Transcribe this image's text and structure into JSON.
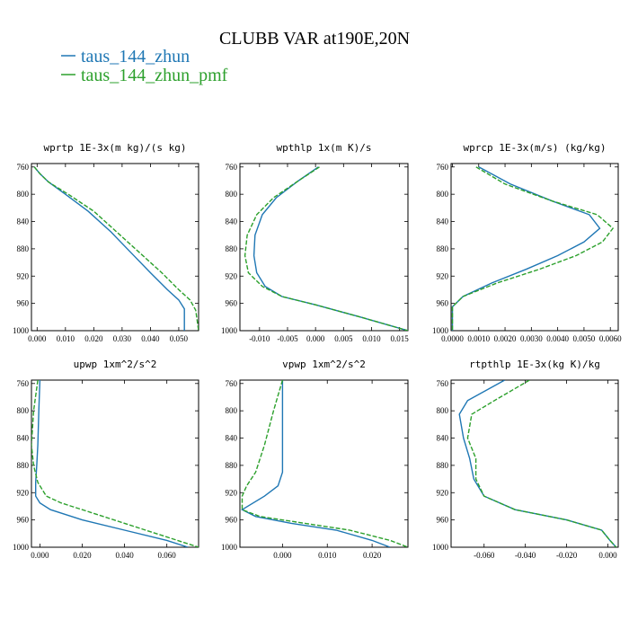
{
  "figure": {
    "title": "CLUBB VAR at190E,20N",
    "legend": [
      {
        "label": "taus_144_zhun",
        "color": "#1f77b4",
        "dash": "solid"
      },
      {
        "label": "taus_144_zhun_pmf",
        "color": "#2ca02c",
        "dash": "dashed"
      }
    ]
  },
  "chart_data": [
    {
      "type": "line",
      "title": "wprtp  1E-3x(m kg)/(s kg)",
      "xlim": [
        -0.002,
        0.057
      ],
      "ylim": [
        1000,
        755
      ],
      "xticks": [
        0.0,
        0.01,
        0.02,
        0.03,
        0.04,
        0.05
      ],
      "xtick_labels": [
        "0.000",
        "0.010",
        "0.020",
        "0.030",
        "0.040",
        "0.050"
      ],
      "yticks": [
        760,
        800,
        840,
        880,
        920,
        960,
        1000
      ],
      "ytick_labels": [
        "760",
        "800",
        "840",
        "880",
        "920",
        "960",
        "1000"
      ],
      "series": [
        {
          "name": "taus_144_zhun",
          "x": [
            -0.001,
            0.001,
            0.004,
            0.01,
            0.018,
            0.026,
            0.033,
            0.04,
            0.046,
            0.05,
            0.052,
            0.052
          ],
          "y": [
            760,
            770,
            782,
            800,
            825,
            855,
            885,
            915,
            940,
            955,
            968,
            1000
          ]
        },
        {
          "name": "taus_144_zhun_pmf",
          "x": [
            -0.001,
            0.001,
            0.004,
            0.011,
            0.02,
            0.028,
            0.036,
            0.044,
            0.05,
            0.054,
            0.056,
            0.057
          ],
          "y": [
            760,
            770,
            782,
            800,
            825,
            855,
            885,
            915,
            940,
            955,
            970,
            1000
          ]
        }
      ]
    },
    {
      "type": "line",
      "title": "wpthlp  1x(m K)/s",
      "xlim": [
        -0.0135,
        0.0165
      ],
      "ylim": [
        1000,
        755
      ],
      "xticks": [
        -0.01,
        -0.005,
        0.0,
        0.005,
        0.01,
        0.015
      ],
      "xtick_labels": [
        "-0.010",
        "-0.005",
        "0.000",
        "0.005",
        "0.010",
        "0.015"
      ],
      "yticks": [
        760,
        800,
        840,
        880,
        920,
        960,
        1000
      ],
      "ytick_labels": [
        "760",
        "800",
        "840",
        "880",
        "920",
        "960",
        "1000"
      ],
      "series": [
        {
          "name": "taus_144_zhun",
          "x": [
            0.0005,
            -0.003,
            -0.007,
            -0.0095,
            -0.0108,
            -0.011,
            -0.0105,
            -0.009,
            -0.006,
            0.0,
            0.008,
            0.0165
          ],
          "y": [
            760,
            780,
            805,
            830,
            860,
            890,
            915,
            935,
            950,
            962,
            980,
            1000
          ]
        },
        {
          "name": "taus_144_zhun_pmf",
          "x": [
            0.0007,
            -0.003,
            -0.0075,
            -0.0105,
            -0.0122,
            -0.0126,
            -0.012,
            -0.0095,
            -0.006,
            0.0,
            0.008,
            0.0165
          ],
          "y": [
            760,
            780,
            805,
            830,
            860,
            890,
            915,
            935,
            950,
            962,
            980,
            1000
          ]
        }
      ]
    },
    {
      "type": "line",
      "title": "wprcp  1E-3x(m/s) (kg/kg)",
      "xlim": [
        -5e-05,
        0.0063
      ],
      "ylim": [
        1000,
        755
      ],
      "xticks": [
        0.0,
        0.001,
        0.002,
        0.003,
        0.004,
        0.005,
        0.006
      ],
      "xtick_labels": [
        "0.0000",
        "0.0010",
        "0.0020",
        "0.0030",
        "0.0040",
        "0.0050",
        "0.0060"
      ],
      "yticks": [
        760,
        800,
        840,
        880,
        920,
        960,
        1000
      ],
      "ytick_labels": [
        "760",
        "800",
        "840",
        "880",
        "920",
        "960",
        "1000"
      ],
      "series": [
        {
          "name": "taus_144_zhun",
          "x": [
            0.001,
            0.0022,
            0.0038,
            0.0052,
            0.0056,
            0.005,
            0.004,
            0.0028,
            0.0015,
            0.0004,
            0.0,
            0.0
          ],
          "y": [
            760,
            785,
            810,
            830,
            850,
            870,
            890,
            910,
            930,
            950,
            965,
            1000
          ]
        },
        {
          "name": "taus_144_zhun_pmf",
          "x": [
            0.0009,
            0.002,
            0.0038,
            0.0055,
            0.0061,
            0.0057,
            0.0047,
            0.0033,
            0.0017,
            0.0004,
            0.0,
            0.0
          ],
          "y": [
            760,
            785,
            810,
            830,
            850,
            870,
            890,
            910,
            930,
            950,
            965,
            1000
          ]
        }
      ]
    },
    {
      "type": "line",
      "title": "upwp  1xm^2/s^2",
      "xlim": [
        -0.004,
        0.075
      ],
      "ylim": [
        1000,
        755
      ],
      "xticks": [
        0.0,
        0.02,
        0.04,
        0.06
      ],
      "xtick_labels": [
        "0.000",
        "0.020",
        "0.040",
        "0.060"
      ],
      "yticks": [
        760,
        800,
        840,
        880,
        920,
        960,
        1000
      ],
      "ytick_labels": [
        "760",
        "800",
        "840",
        "880",
        "920",
        "960",
        "1000"
      ],
      "series": [
        {
          "name": "taus_144_zhun",
          "x": [
            0.0,
            -0.0005,
            -0.001,
            -0.0015,
            -0.002,
            -0.002,
            0.0,
            0.005,
            0.02,
            0.04,
            0.06,
            0.07
          ],
          "y": [
            755,
            800,
            850,
            880,
            905,
            925,
            935,
            945,
            960,
            975,
            990,
            1000
          ]
        },
        {
          "name": "taus_144_zhun_pmf",
          "x": [
            -0.001,
            -0.003,
            -0.004,
            -0.003,
            -0.001,
            0.003,
            0.01,
            0.02,
            0.035,
            0.05,
            0.065,
            0.075
          ],
          "y": [
            755,
            800,
            850,
            880,
            905,
            925,
            935,
            945,
            960,
            975,
            990,
            1000
          ]
        }
      ]
    },
    {
      "type": "line",
      "title": "vpwp  1xm^2/s^2",
      "xlim": [
        -0.0095,
        0.028
      ],
      "ylim": [
        1000,
        755
      ],
      "xticks": [
        0.0,
        0.01,
        0.02
      ],
      "xtick_labels": [
        "0.000",
        "0.010",
        "0.020"
      ],
      "yticks": [
        760,
        800,
        840,
        880,
        920,
        960,
        1000
      ],
      "ytick_labels": [
        "760",
        "800",
        "840",
        "880",
        "920",
        "960",
        "1000"
      ],
      "series": [
        {
          "name": "taus_144_zhun",
          "x": [
            0.0,
            0.0,
            0.0,
            0.0,
            -0.001,
            -0.004,
            -0.009,
            -0.006,
            0.002,
            0.012,
            0.02,
            0.024
          ],
          "y": [
            755,
            800,
            850,
            890,
            910,
            925,
            945,
            955,
            965,
            975,
            990,
            1000
          ]
        },
        {
          "name": "taus_144_zhun_pmf",
          "x": [
            0.0,
            -0.002,
            -0.004,
            -0.006,
            -0.008,
            -0.009,
            -0.009,
            -0.005,
            0.005,
            0.015,
            0.024,
            0.028
          ],
          "y": [
            755,
            800,
            850,
            890,
            910,
            925,
            945,
            955,
            965,
            975,
            990,
            1000
          ]
        }
      ]
    },
    {
      "type": "line",
      "title": "rtpthlp  1E-3x(kg K)/kg",
      "xlim": [
        -0.076,
        0.005
      ],
      "ylim": [
        1000,
        755
      ],
      "xticks": [
        -0.06,
        -0.04,
        -0.02,
        0.0
      ],
      "xtick_labels": [
        "-0.060",
        "-0.040",
        "-0.020",
        "0.000"
      ],
      "yticks": [
        760,
        800,
        840,
        880,
        920,
        960,
        1000
      ],
      "ytick_labels": [
        "760",
        "800",
        "840",
        "880",
        "920",
        "960",
        "1000"
      ],
      "series": [
        {
          "name": "taus_144_zhun",
          "x": [
            -0.05,
            -0.068,
            -0.072,
            -0.07,
            -0.067,
            -0.065,
            -0.06,
            -0.045,
            -0.02,
            -0.003,
            0.001,
            0.004
          ],
          "y": [
            755,
            785,
            805,
            840,
            870,
            900,
            925,
            945,
            960,
            975,
            990,
            1000
          ]
        },
        {
          "name": "taus_144_zhun_pmf",
          "x": [
            -0.038,
            -0.055,
            -0.066,
            -0.068,
            -0.064,
            -0.064,
            -0.06,
            -0.045,
            -0.02,
            -0.003,
            0.001,
            0.004
          ],
          "y": [
            755,
            785,
            805,
            840,
            870,
            900,
            925,
            945,
            960,
            975,
            990,
            1000
          ]
        }
      ]
    }
  ]
}
